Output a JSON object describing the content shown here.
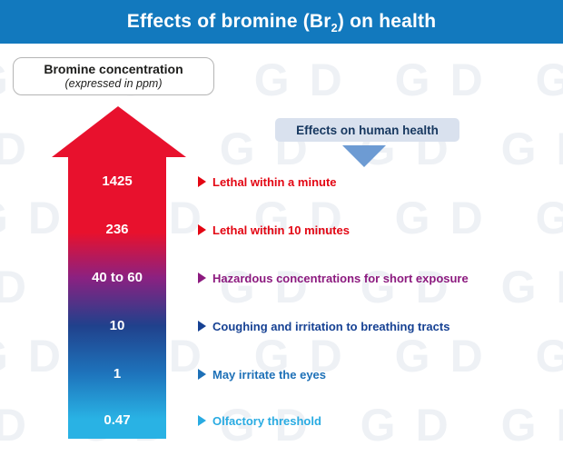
{
  "title": {
    "prefix": "Effects of bromine (Br",
    "subscript": "2",
    "suffix": ") on health"
  },
  "concentration_box": {
    "title": "Bromine concentration",
    "subtitle": "(expressed in ppm)"
  },
  "effects_box": {
    "label": "Effects on human health"
  },
  "watermark_text": "GD",
  "colors": {
    "titlebar_blue": "#1279be",
    "arrow_red": "#e8112d",
    "arrow_purple": "#8b2181",
    "arrow_navy": "#20418c",
    "arrow_blue": "#1e74bc",
    "arrow_cyan": "#29b2e4",
    "effects_box_bg": "#d9e1ee",
    "effects_box_text": "#16375f",
    "down_triangle": "#6d9bd3"
  },
  "rows": [
    {
      "ppm": "1425",
      "effect": "Lethal within a minute",
      "color": "#e30613"
    },
    {
      "ppm": "236",
      "effect": "Lethal within 10 minutes",
      "color": "#e30613"
    },
    {
      "ppm": "40 to 60",
      "effect": "Hazardous concentrations for short exposure",
      "color": "#8c1a7f"
    },
    {
      "ppm": "10",
      "effect": "Coughing and irritation to breathing tracts",
      "color": "#164193"
    },
    {
      "ppm": "1",
      "effect": "May irritate the eyes",
      "color": "#1d70b7"
    },
    {
      "ppm": "0.47",
      "effect": "Olfactory threshold",
      "color": "#29abe2"
    }
  ]
}
